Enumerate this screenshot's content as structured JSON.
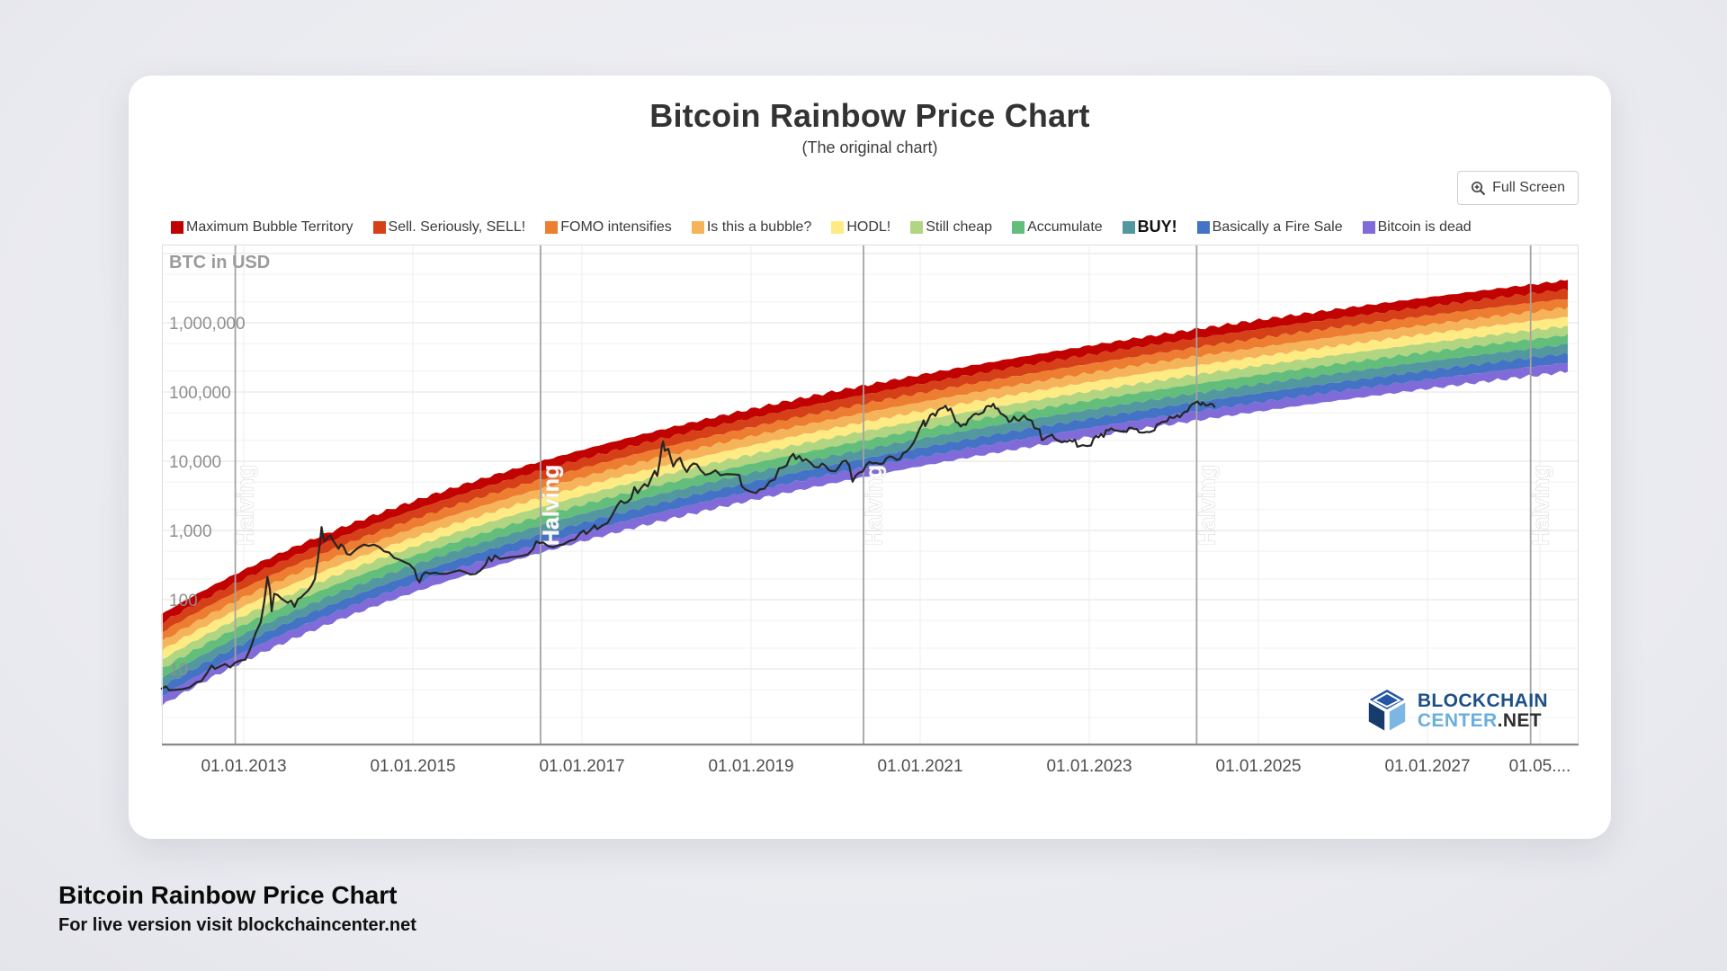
{
  "header": {
    "title": "Bitcoin Rainbow Price Chart",
    "subtitle": "(The original chart)"
  },
  "toolbar": {
    "fullscreen_label": "Full Screen",
    "fullscreen_icon": "magnifier-plus-icon"
  },
  "watermark": {
    "line1": "BLOCKCHAIN",
    "line2": "CENTER",
    "suffix": ".NET"
  },
  "footer": {
    "title": "Bitcoin Rainbow Price Chart",
    "subtitle": "For live version visit blockchaincenter.net"
  },
  "colors": {
    "price_line": "#262626",
    "halving_line": "#a3a3a3",
    "grid_major": "#e3e3e3",
    "grid_minor": "#f2f2f2",
    "grid_vertical": "#ededed",
    "axis_line": "#8a8a8a",
    "plot_border": "#dedede",
    "tick_y": "#8e8e8e",
    "tick_x": "#4f4f4f",
    "axis_title": "#9b9b9b",
    "halving_text": "#ffffff"
  },
  "chart_data": {
    "type": "area",
    "scale": "log",
    "grid": true,
    "y_axis_label": "BTC in USD",
    "y_ticks": [
      {
        "lg": 6,
        "label": "1,000,000"
      },
      {
        "lg": 5,
        "label": "100,000"
      },
      {
        "lg": 4,
        "label": "10,000"
      },
      {
        "lg": 3,
        "label": "1,000"
      },
      {
        "lg": 2,
        "label": "100"
      },
      {
        "lg": 1,
        "label": "10"
      }
    ],
    "x_ticks": [
      {
        "year": 2013.0,
        "label": "01.01.2013"
      },
      {
        "year": 2015.0,
        "label": "01.01.2015"
      },
      {
        "year": 2017.0,
        "label": "01.01.2017"
      },
      {
        "year": 2019.0,
        "label": "01.01.2019"
      },
      {
        "year": 2021.0,
        "label": "01.01.2021"
      },
      {
        "year": 2023.0,
        "label": "01.01.2023"
      },
      {
        "year": 2025.0,
        "label": "01.01.2025"
      },
      {
        "year": 2027.0,
        "label": "01.01.2027"
      },
      {
        "year": 2028.33,
        "label": "01.05...."
      }
    ],
    "halvings": {
      "label": "Halving",
      "years": [
        2012.9,
        2016.51,
        2020.33,
        2024.27,
        2028.22
      ]
    },
    "bands": [
      {
        "label": "Maximum Bubble Territory",
        "color": "#c00200"
      },
      {
        "label": "Sell. Seriously, SELL!",
        "color": "#d64018"
      },
      {
        "label": "FOMO intensifies",
        "color": "#ed7d31"
      },
      {
        "label": "Is this a bubble?",
        "color": "#f6b45a"
      },
      {
        "label": "HODL!",
        "color": "#feeb84"
      },
      {
        "label": "Still cheap",
        "color": "#b1d580"
      },
      {
        "label": "Accumulate",
        "color": "#63be7b"
      },
      {
        "label": "BUY!",
        "color": "#54989f",
        "emphasis": true
      },
      {
        "label": "Basically a Fire Sale",
        "color": "#4472c4"
      },
      {
        "label": "Bitcoin is dead",
        "color": "#806bd9"
      }
    ],
    "rainbow_model": {
      "note": "center log10(USD) = a + b * ln(year - origin); bands span +-half_width_decades around center, 10 equal bands",
      "a": -2.98,
      "b": 2.95,
      "origin_year": 2008,
      "half_width_decades": 0.66,
      "start_year": 2012.03,
      "end_year": 2028.66
    },
    "price_series_year_usd": [
      [
        2012.03,
        5.2
      ],
      [
        2012.08,
        5.6
      ],
      [
        2012.12,
        4.9
      ],
      [
        2012.2,
        5.0
      ],
      [
        2012.28,
        5.1
      ],
      [
        2012.36,
        5.4
      ],
      [
        2012.44,
        6.4
      ],
      [
        2012.5,
        6.7
      ],
      [
        2012.56,
        8.5
      ],
      [
        2012.62,
        11.2
      ],
      [
        2012.66,
        10.0
      ],
      [
        2012.72,
        10.9
      ],
      [
        2012.78,
        11.8
      ],
      [
        2012.84,
        10.5
      ],
      [
        2012.9,
        12.4
      ],
      [
        2012.96,
        13.2
      ],
      [
        2013.02,
        13.6
      ],
      [
        2013.08,
        20
      ],
      [
        2013.14,
        33
      ],
      [
        2013.2,
        47
      ],
      [
        2013.24,
        90
      ],
      [
        2013.28,
        213
      ],
      [
        2013.31,
        140
      ],
      [
        2013.33,
        68
      ],
      [
        2013.36,
        122
      ],
      [
        2013.4,
        117
      ],
      [
        2013.44,
        105
      ],
      [
        2013.48,
        97
      ],
      [
        2013.52,
        90
      ],
      [
        2013.56,
        97
      ],
      [
        2013.6,
        79
      ],
      [
        2013.64,
        102
      ],
      [
        2013.68,
        108
      ],
      [
        2013.72,
        122
      ],
      [
        2013.76,
        135
      ],
      [
        2013.8,
        158
      ],
      [
        2013.84,
        198
      ],
      [
        2013.87,
        340
      ],
      [
        2013.9,
        640
      ],
      [
        2013.92,
        1120
      ],
      [
        2013.94,
        780
      ],
      [
        2013.96,
        695
      ],
      [
        2013.98,
        745
      ],
      [
        2014.0,
        808
      ],
      [
        2014.03,
        840
      ],
      [
        2014.06,
        700
      ],
      [
        2014.09,
        620
      ],
      [
        2014.12,
        545
      ],
      [
        2014.15,
        630
      ],
      [
        2014.18,
        585
      ],
      [
        2014.22,
        455
      ],
      [
        2014.26,
        445
      ],
      [
        2014.3,
        495
      ],
      [
        2014.36,
        570
      ],
      [
        2014.42,
        625
      ],
      [
        2014.48,
        598
      ],
      [
        2014.54,
        625
      ],
      [
        2014.6,
        580
      ],
      [
        2014.66,
        500
      ],
      [
        2014.72,
        480
      ],
      [
        2014.78,
        400
      ],
      [
        2014.84,
        378
      ],
      [
        2014.9,
        350
      ],
      [
        2014.96,
        325
      ],
      [
        2015.02,
        272
      ],
      [
        2015.05,
        200
      ],
      [
        2015.08,
        178
      ],
      [
        2015.11,
        225
      ],
      [
        2015.15,
        250
      ],
      [
        2015.2,
        238
      ],
      [
        2015.26,
        245
      ],
      [
        2015.33,
        235
      ],
      [
        2015.4,
        237
      ],
      [
        2015.48,
        252
      ],
      [
        2015.55,
        266
      ],
      [
        2015.62,
        250
      ],
      [
        2015.68,
        231
      ],
      [
        2015.74,
        236
      ],
      [
        2015.8,
        264
      ],
      [
        2015.86,
        320
      ],
      [
        2015.9,
        412
      ],
      [
        2015.93,
        360
      ],
      [
        2015.97,
        435
      ],
      [
        2016.03,
        388
      ],
      [
        2016.09,
        398
      ],
      [
        2016.16,
        412
      ],
      [
        2016.23,
        418
      ],
      [
        2016.3,
        432
      ],
      [
        2016.36,
        452
      ],
      [
        2016.42,
        536
      ],
      [
        2016.46,
        696
      ],
      [
        2016.5,
        655
      ],
      [
        2016.54,
        672
      ],
      [
        2016.6,
        592
      ],
      [
        2016.66,
        572
      ],
      [
        2016.72,
        610
      ],
      [
        2016.78,
        630
      ],
      [
        2016.85,
        705
      ],
      [
        2016.92,
        745
      ],
      [
        2016.98,
        920
      ],
      [
        2017.02,
        998
      ],
      [
        2017.05,
        890
      ],
      [
        2017.1,
        1010
      ],
      [
        2017.15,
        1190
      ],
      [
        2017.18,
        1040
      ],
      [
        2017.24,
        1180
      ],
      [
        2017.3,
        1270
      ],
      [
        2017.36,
        1690
      ],
      [
        2017.42,
        2320
      ],
      [
        2017.46,
        2680
      ],
      [
        2017.5,
        2480
      ],
      [
        2017.54,
        2590
      ],
      [
        2017.58,
        2880
      ],
      [
        2017.62,
        4230
      ],
      [
        2017.66,
        3460
      ],
      [
        2017.7,
        4120
      ],
      [
        2017.74,
        4680
      ],
      [
        2017.78,
        4310
      ],
      [
        2017.82,
        5720
      ],
      [
        2017.86,
        7250
      ],
      [
        2017.89,
        6120
      ],
      [
        2017.92,
        9900
      ],
      [
        2017.945,
        16600
      ],
      [
        2017.96,
        19300
      ],
      [
        2017.98,
        14200
      ],
      [
        2018.02,
        15100
      ],
      [
        2018.05,
        11100
      ],
      [
        2018.08,
        8400
      ],
      [
        2018.12,
        10300
      ],
      [
        2018.16,
        11200
      ],
      [
        2018.2,
        8300
      ],
      [
        2018.24,
        7000
      ],
      [
        2018.28,
        8450
      ],
      [
        2018.32,
        9300
      ],
      [
        2018.36,
        9000
      ],
      [
        2018.4,
        7500
      ],
      [
        2018.46,
        6350
      ],
      [
        2018.52,
        6650
      ],
      [
        2018.58,
        7400
      ],
      [
        2018.64,
        6250
      ],
      [
        2018.7,
        6500
      ],
      [
        2018.76,
        6480
      ],
      [
        2018.82,
        6420
      ],
      [
        2018.86,
        6350
      ],
      [
        2018.89,
        4350
      ],
      [
        2018.93,
        3950
      ],
      [
        2018.97,
        3720
      ],
      [
        2019.02,
        3580
      ],
      [
        2019.06,
        3480
      ],
      [
        2019.1,
        3900
      ],
      [
        2019.16,
        4020
      ],
      [
        2019.22,
        5100
      ],
      [
        2019.28,
        5450
      ],
      [
        2019.33,
        7900
      ],
      [
        2019.38,
        8100
      ],
      [
        2019.42,
        8650
      ],
      [
        2019.46,
        11300
      ],
      [
        2019.5,
        12800
      ],
      [
        2019.53,
        10700
      ],
      [
        2019.57,
        11900
      ],
      [
        2019.61,
        10100
      ],
      [
        2019.65,
        10700
      ],
      [
        2019.7,
        9600
      ],
      [
        2019.75,
        8250
      ],
      [
        2019.8,
        8150
      ],
      [
        2019.84,
        9250
      ],
      [
        2019.88,
        8600
      ],
      [
        2019.92,
        7400
      ],
      [
        2019.96,
        7200
      ],
      [
        2020.0,
        7200
      ],
      [
        2020.04,
        8300
      ],
      [
        2020.08,
        9850
      ],
      [
        2020.12,
        10200
      ],
      [
        2020.16,
        8800
      ],
      [
        2020.2,
        5050
      ],
      [
        2020.24,
        6250
      ],
      [
        2020.28,
        6850
      ],
      [
        2020.32,
        7100
      ],
      [
        2020.36,
        8800
      ],
      [
        2020.4,
        9750
      ],
      [
        2020.44,
        9300
      ],
      [
        2020.48,
        9450
      ],
      [
        2020.52,
        9150
      ],
      [
        2020.56,
        9250
      ],
      [
        2020.6,
        11000
      ],
      [
        2020.64,
        11750
      ],
      [
        2020.68,
        11400
      ],
      [
        2020.72,
        10450
      ],
      [
        2020.76,
        10750
      ],
      [
        2020.8,
        13050
      ],
      [
        2020.84,
        13800
      ],
      [
        2020.88,
        15600
      ],
      [
        2020.92,
        18400
      ],
      [
        2020.96,
        23200
      ],
      [
        2020.99,
        28900
      ],
      [
        2021.02,
        33500
      ],
      [
        2021.04,
        39000
      ],
      [
        2021.06,
        32100
      ],
      [
        2021.09,
        38300
      ],
      [
        2021.12,
        46400
      ],
      [
        2021.15,
        48900
      ],
      [
        2021.18,
        45100
      ],
      [
        2021.21,
        54100
      ],
      [
        2021.24,
        57500
      ],
      [
        2021.27,
        58900
      ],
      [
        2021.3,
        63200
      ],
      [
        2021.33,
        54000
      ],
      [
        2021.36,
        57800
      ],
      [
        2021.39,
        46800
      ],
      [
        2021.42,
        37300
      ],
      [
        2021.45,
        35600
      ],
      [
        2021.48,
        31800
      ],
      [
        2021.51,
        34200
      ],
      [
        2021.54,
        33500
      ],
      [
        2021.57,
        39900
      ],
      [
        2021.6,
        42800
      ],
      [
        2021.63,
        47100
      ],
      [
        2021.66,
        48800
      ],
      [
        2021.69,
        47300
      ],
      [
        2021.72,
        48900
      ],
      [
        2021.75,
        51200
      ],
      [
        2021.78,
        61500
      ],
      [
        2021.81,
        63100
      ],
      [
        2021.84,
        61300
      ],
      [
        2021.865,
        67500
      ],
      [
        2021.89,
        58000
      ],
      [
        2021.92,
        57200
      ],
      [
        2021.95,
        49300
      ],
      [
        2021.98,
        46900
      ],
      [
        2022.02,
        43100
      ],
      [
        2022.05,
        36900
      ],
      [
        2022.08,
        38300
      ],
      [
        2022.11,
        43900
      ],
      [
        2022.14,
        39400
      ],
      [
        2022.17,
        38500
      ],
      [
        2022.2,
        42200
      ],
      [
        2022.23,
        45800
      ],
      [
        2022.26,
        40800
      ],
      [
        2022.29,
        39700
      ],
      [
        2022.32,
        38500
      ],
      [
        2022.35,
        30100
      ],
      [
        2022.38,
        29600
      ],
      [
        2022.41,
        29000
      ],
      [
        2022.44,
        20100
      ],
      [
        2022.47,
        21200
      ],
      [
        2022.5,
        22500
      ],
      [
        2022.53,
        23200
      ],
      [
        2022.56,
        24300
      ],
      [
        2022.59,
        21300
      ],
      [
        2022.62,
        20100
      ],
      [
        2022.65,
        19600
      ],
      [
        2022.68,
        18800
      ],
      [
        2022.71,
        19400
      ],
      [
        2022.74,
        19100
      ],
      [
        2022.77,
        20300
      ],
      [
        2022.8,
        19200
      ],
      [
        2022.83,
        20500
      ],
      [
        2022.86,
        16200
      ],
      [
        2022.89,
        16600
      ],
      [
        2022.92,
        17100
      ],
      [
        2022.95,
        16800
      ],
      [
        2022.98,
        16600
      ],
      [
        2023.02,
        16900
      ],
      [
        2023.05,
        21100
      ],
      [
        2023.08,
        23200
      ],
      [
        2023.11,
        22100
      ],
      [
        2023.14,
        24800
      ],
      [
        2023.17,
        22400
      ],
      [
        2023.2,
        28200
      ],
      [
        2023.23,
        28000
      ],
      [
        2023.26,
        29900
      ],
      [
        2023.29,
        28100
      ],
      [
        2023.32,
        27700
      ],
      [
        2023.35,
        27300
      ],
      [
        2023.38,
        26800
      ],
      [
        2023.41,
        27200
      ],
      [
        2023.44,
        26400
      ],
      [
        2023.47,
        30400
      ],
      [
        2023.5,
        30300
      ],
      [
        2023.53,
        29200
      ],
      [
        2023.56,
        29300
      ],
      [
        2023.59,
        26100
      ],
      [
        2023.62,
        25900
      ],
      [
        2023.65,
        26050
      ],
      [
        2023.68,
        26550
      ],
      [
        2023.71,
        26250
      ],
      [
        2023.74,
        27000
      ],
      [
        2023.77,
        27950
      ],
      [
        2023.8,
        34100
      ],
      [
        2023.83,
        34700
      ],
      [
        2023.86,
        36900
      ],
      [
        2023.89,
        37300
      ],
      [
        2023.92,
        37800
      ],
      [
        2023.95,
        43800
      ],
      [
        2023.98,
        42300
      ],
      [
        2024.01,
        42800
      ],
      [
        2024.04,
        46300
      ],
      [
        2024.07,
        43000
      ],
      [
        2024.1,
        47800
      ],
      [
        2024.13,
        51800
      ],
      [
        2024.16,
        52200
      ],
      [
        2024.19,
        61500
      ],
      [
        2024.22,
        67200
      ],
      [
        2024.25,
        69400
      ],
      [
        2024.28,
        73100
      ],
      [
        2024.3,
        67800
      ],
      [
        2024.32,
        64900
      ],
      [
        2024.34,
        70800
      ],
      [
        2024.36,
        67200
      ],
      [
        2024.38,
        63800
      ],
      [
        2024.4,
        64100
      ],
      [
        2024.42,
        66300
      ],
      [
        2024.44,
        67800
      ],
      [
        2024.46,
        66200
      ],
      [
        2024.48,
        61000
      ]
    ]
  }
}
